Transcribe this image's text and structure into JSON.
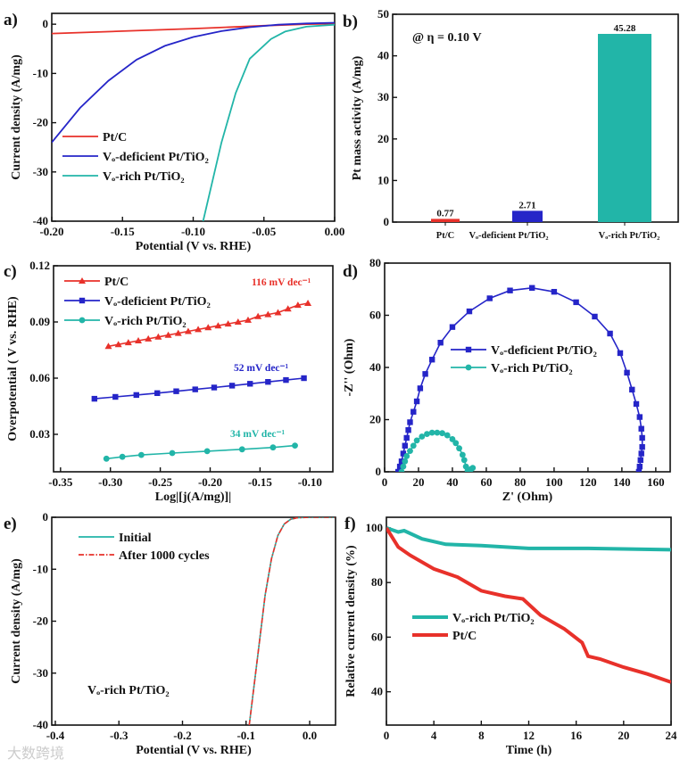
{
  "watermark": "大数跨境",
  "colors": {
    "red": "#e8312a",
    "blue": "#2525c8",
    "teal": "#22b5a8",
    "axis": "#111111"
  },
  "chart_data": [
    {
      "panel": "a)",
      "type": "line",
      "xlabel": "Potential (V vs. RHE)",
      "ylabel": "Current density (A/mg)",
      "xlim": [
        -0.2,
        0.0
      ],
      "ylim": [
        -40,
        2.2
      ],
      "xticks": [
        {
          "v": -0.2,
          "t": "-0.20"
        },
        {
          "v": -0.15,
          "t": "-0.15"
        },
        {
          "v": -0.1,
          "t": "-0.10"
        },
        {
          "v": -0.05,
          "t": "-0.05"
        },
        {
          "v": 0,
          "t": "0.00"
        }
      ],
      "yticks": [
        {
          "v": 0,
          "t": "0"
        },
        {
          "v": -10,
          "t": "-10"
        },
        {
          "v": -20,
          "t": "-20"
        },
        {
          "v": -30,
          "t": "-30"
        },
        {
          "v": -40,
          "t": "-40"
        }
      ],
      "legend": "bottom-left",
      "series": [
        {
          "name": "Pt/C",
          "color": "red",
          "points": [
            [
              -0.2,
              -1.9
            ],
            [
              -0.15,
              -1.4
            ],
            [
              -0.1,
              -0.9
            ],
            [
              -0.05,
              -0.3
            ],
            [
              -0.02,
              0
            ],
            [
              0,
              0.1
            ]
          ]
        },
        {
          "name": "Vₒ-deficient Pt/TiO₂",
          "color": "blue",
          "points": [
            [
              -0.2,
              -24
            ],
            [
              -0.18,
              -17
            ],
            [
              -0.16,
              -11.5
            ],
            [
              -0.14,
              -7.2
            ],
            [
              -0.12,
              -4.4
            ],
            [
              -0.1,
              -2.6
            ],
            [
              -0.08,
              -1.4
            ],
            [
              -0.06,
              -0.6
            ],
            [
              -0.04,
              -0.1
            ],
            [
              -0.02,
              0.15
            ],
            [
              0,
              0.3
            ]
          ]
        },
        {
          "name": "Vₒ-rich Pt/TiO₂",
          "color": "teal",
          "points": [
            [
              -0.093,
              -40
            ],
            [
              -0.08,
              -24
            ],
            [
              -0.07,
              -14
            ],
            [
              -0.06,
              -7
            ],
            [
              -0.045,
              -3
            ],
            [
              -0.035,
              -1.5
            ],
            [
              -0.02,
              -0.5
            ],
            [
              0,
              -0.1
            ]
          ]
        }
      ]
    },
    {
      "panel": "b)",
      "type": "bar",
      "ylabel": "Pt mass activity (A/mg)",
      "ylim": [
        0,
        50
      ],
      "yticks": [
        {
          "v": 0,
          "t": "0"
        },
        {
          "v": 10,
          "t": "10"
        },
        {
          "v": 20,
          "t": "20"
        },
        {
          "v": 30,
          "t": "30"
        },
        {
          "v": 40,
          "t": "40"
        },
        {
          "v": 50,
          "t": "50"
        }
      ],
      "annotation": "@ η = 0.10 V",
      "categories": [
        "Pt/C",
        "Vₒ-deficient Pt/TiO₂",
        "Vₒ-rich Pt/TiO₂"
      ],
      "values": [
        0.77,
        2.71,
        45.28
      ],
      "value_labels": [
        "0.77",
        "2.71",
        "45.28"
      ],
      "bar_colors": [
        "red",
        "blue",
        "teal"
      ]
    },
    {
      "panel": "c)",
      "type": "line",
      "xlabel": "Log|[j(A/mg)]|",
      "ylabel": "Overpotential ( V vs. RHE)",
      "xlim": [
        -0.357,
        -0.077
      ],
      "ylim": [
        0.01,
        0.12
      ],
      "xticks": [
        {
          "v": -0.35,
          "t": "-0.35"
        },
        {
          "v": -0.3,
          "t": "-0.30"
        },
        {
          "v": -0.25,
          "t": "-0.25"
        },
        {
          "v": -0.2,
          "t": "-0.20"
        },
        {
          "v": -0.15,
          "t": "-0.15"
        },
        {
          "v": -0.1,
          "t": "-0.10"
        }
      ],
      "yticks": [
        {
          "v": 0.03,
          "t": "0.03"
        },
        {
          "v": 0.06,
          "t": "0.06"
        },
        {
          "v": 0.09,
          "t": "0.09"
        },
        {
          "v": 0.12,
          "t": "0.12"
        }
      ],
      "legend": "top-left",
      "annotations": [
        {
          "text": "116 mV dec⁻¹",
          "color": "red"
        },
        {
          "text": "52 mV dec⁻¹",
          "color": "blue"
        },
        {
          "text": "34 mV dec⁻¹",
          "color": "teal"
        }
      ],
      "series": [
        {
          "name": "Pt/C",
          "color": "red",
          "marker": "triangle",
          "points": [
            [
              -0.302,
              0.077
            ],
            [
              -0.292,
              0.078
            ],
            [
              -0.282,
              0.079
            ],
            [
              -0.272,
              0.08
            ],
            [
              -0.262,
              0.081
            ],
            [
              -0.252,
              0.082
            ],
            [
              -0.242,
              0.083
            ],
            [
              -0.232,
              0.084
            ],
            [
              -0.222,
              0.085
            ],
            [
              -0.212,
              0.086
            ],
            [
              -0.202,
              0.087
            ],
            [
              -0.192,
              0.088
            ],
            [
              -0.182,
              0.089
            ],
            [
              -0.172,
              0.09
            ],
            [
              -0.162,
              0.091
            ],
            [
              -0.152,
              0.093
            ],
            [
              -0.142,
              0.094
            ],
            [
              -0.132,
              0.095
            ],
            [
              -0.122,
              0.097
            ],
            [
              -0.112,
              0.099
            ],
            [
              -0.102,
              0.1
            ]
          ]
        },
        {
          "name": "Vₒ-deficient Pt/TiO₂",
          "color": "blue",
          "marker": "square",
          "points": [
            [
              -0.316,
              0.049
            ],
            [
              -0.295,
              0.05
            ],
            [
              -0.274,
              0.051
            ],
            [
              -0.253,
              0.052
            ],
            [
              -0.234,
              0.053
            ],
            [
              -0.215,
              0.054
            ],
            [
              -0.196,
              0.055
            ],
            [
              -0.178,
              0.056
            ],
            [
              -0.16,
              0.057
            ],
            [
              -0.142,
              0.058
            ],
            [
              -0.124,
              0.059
            ],
            [
              -0.106,
              0.06
            ]
          ]
        },
        {
          "name": "Vₒ-rich Pt/TiO₂",
          "color": "teal",
          "marker": "circle",
          "points": [
            [
              -0.304,
              0.017
            ],
            [
              -0.288,
              0.018
            ],
            [
              -0.269,
              0.019
            ],
            [
              -0.238,
              0.02
            ],
            [
              -0.203,
              0.021
            ],
            [
              -0.168,
              0.022
            ],
            [
              -0.137,
              0.023
            ],
            [
              -0.115,
              0.024
            ]
          ]
        }
      ]
    },
    {
      "panel": "d)",
      "type": "scatter",
      "xlabel": "Z' (Ohm)",
      "ylabel": "-Z'' (Ohm)",
      "xlim": [
        0,
        168.5
      ],
      "ylim": [
        0,
        80
      ],
      "xticks": [
        {
          "v": 0,
          "t": "0"
        },
        {
          "v": 20,
          "t": "20"
        },
        {
          "v": 40,
          "t": "40"
        },
        {
          "v": 60,
          "t": "60"
        },
        {
          "v": 80,
          "t": "80"
        },
        {
          "v": 100,
          "t": "100"
        },
        {
          "v": 120,
          "t": "120"
        },
        {
          "v": 140,
          "t": "140"
        },
        {
          "v": 160,
          "t": "160"
        }
      ],
      "yticks": [
        {
          "v": 0,
          "t": "0"
        },
        {
          "v": 20,
          "t": "20"
        },
        {
          "v": 40,
          "t": "40"
        },
        {
          "v": 60,
          "t": "60"
        },
        {
          "v": 80,
          "t": "80"
        }
      ],
      "legend": "center",
      "series": [
        {
          "name": "Vₒ-deficient Pt/TiO₂",
          "color": "blue",
          "marker": "square",
          "points": [
            [
              8,
              0
            ],
            [
              9,
              2
            ],
            [
              10,
              4
            ],
            [
              11,
              7
            ],
            [
              12,
              10
            ],
            [
              13,
              13
            ],
            [
              14,
              16
            ],
            [
              15,
              19
            ],
            [
              17,
              23
            ],
            [
              19,
              27
            ],
            [
              21,
              32
            ],
            [
              24,
              37.5
            ],
            [
              28,
              43
            ],
            [
              33,
              49.5
            ],
            [
              40,
              55.5
            ],
            [
              50,
              61.5
            ],
            [
              62,
              66.5
            ],
            [
              74,
              69.5
            ],
            [
              87,
              70.5
            ],
            [
              100,
              69
            ],
            [
              113,
              65
            ],
            [
              124,
              59.5
            ],
            [
              133,
              53
            ],
            [
              139,
              45.5
            ],
            [
              143,
              38
            ],
            [
              146,
              31.5
            ],
            [
              148.5,
              26
            ],
            [
              150.5,
              21
            ],
            [
              151.5,
              16.5
            ],
            [
              152,
              13
            ],
            [
              152,
              9.5
            ],
            [
              151.5,
              7
            ],
            [
              151,
              4.5
            ],
            [
              150.5,
              2
            ],
            [
              150,
              0
            ]
          ]
        },
        {
          "name": "Vₒ-rich Pt/TiO₂",
          "color": "teal",
          "marker": "circle",
          "points": [
            [
              10,
              0
            ],
            [
              11,
              2
            ],
            [
              12,
              4
            ],
            [
              13,
              6
            ],
            [
              15,
              8
            ],
            [
              17,
              10
            ],
            [
              19,
              12
            ],
            [
              22,
              13.5
            ],
            [
              25,
              14.5
            ],
            [
              28,
              15
            ],
            [
              31,
              15
            ],
            [
              34,
              14.8
            ],
            [
              37,
              14
            ],
            [
              40,
              12.5
            ],
            [
              42,
              11
            ],
            [
              44,
              9
            ],
            [
              46,
              6.5
            ],
            [
              47,
              4.5
            ],
            [
              48,
              2
            ],
            [
              49,
              0.5
            ],
            [
              50,
              0.3
            ],
            [
              51,
              1
            ],
            [
              52,
              1.5
            ]
          ]
        }
      ]
    },
    {
      "panel": "e)",
      "type": "line",
      "xlabel": "Potential (V vs. RHE)",
      "ylabel": "Current density (A/mg)",
      "xlim": [
        -0.4056,
        0.0407
      ],
      "ylim": [
        -40,
        0
      ],
      "xticks": [
        {
          "v": -0.4,
          "t": "-0.4"
        },
        {
          "v": -0.3,
          "t": "-0.3"
        },
        {
          "v": -0.2,
          "t": "-0.2"
        },
        {
          "v": -0.1,
          "t": "-0.1"
        },
        {
          "v": 0,
          "t": "0.0"
        }
      ],
      "yticks": [
        {
          "v": 0,
          "t": "0"
        },
        {
          "v": -10,
          "t": "-10"
        },
        {
          "v": -20,
          "t": "-20"
        },
        {
          "v": -30,
          "t": "-30"
        },
        {
          "v": -40,
          "t": "-40"
        }
      ],
      "legend": "top-left",
      "annotation": "Vₒ-rich Pt/TiO₂",
      "series": [
        {
          "name": "Initial",
          "color": "teal",
          "style": "solid",
          "points": [
            [
              -0.095,
              -40
            ],
            [
              -0.08,
              -25
            ],
            [
              -0.07,
              -15
            ],
            [
              -0.06,
              -8
            ],
            [
              -0.05,
              -3.5
            ],
            [
              -0.04,
              -1.3
            ],
            [
              -0.03,
              -0.4
            ],
            [
              -0.02,
              -0.1
            ],
            [
              0,
              0
            ],
            [
              0.04,
              0
            ]
          ]
        },
        {
          "name": "After 1000 cycles",
          "color": "red",
          "style": "dashdot",
          "points": [
            [
              -0.095,
              -40
            ],
            [
              -0.08,
              -25
            ],
            [
              -0.07,
              -15
            ],
            [
              -0.06,
              -8
            ],
            [
              -0.05,
              -3.5
            ],
            [
              -0.04,
              -1.3
            ],
            [
              -0.03,
              -0.4
            ],
            [
              -0.02,
              -0.1
            ],
            [
              0,
              0
            ],
            [
              0.04,
              0
            ]
          ]
        }
      ]
    },
    {
      "panel": "f)",
      "type": "line",
      "xlabel": "Time (h)",
      "ylabel": "Relative current density (%)",
      "xlim": [
        0,
        24
      ],
      "ylim": [
        27.8,
        103.9
      ],
      "xticks": [
        {
          "v": 0,
          "t": "0"
        },
        {
          "v": 4,
          "t": "4"
        },
        {
          "v": 8,
          "t": "8"
        },
        {
          "v": 12,
          "t": "12"
        },
        {
          "v": 16,
          "t": "16"
        },
        {
          "v": 20,
          "t": "20"
        },
        {
          "v": 24,
          "t": "24"
        }
      ],
      "yticks": [
        {
          "v": 40,
          "t": "40"
        },
        {
          "v": 60,
          "t": "60"
        },
        {
          "v": 80,
          "t": "80"
        },
        {
          "v": 100,
          "t": "100"
        }
      ],
      "legend": "bottom-left",
      "series": [
        {
          "name": "Vₒ-rich Pt/TiO₂",
          "color": "teal",
          "points": [
            [
              0,
              100
            ],
            [
              1,
              98.5
            ],
            [
              1.5,
              99
            ],
            [
              3,
              96
            ],
            [
              5,
              94
            ],
            [
              8,
              93.5
            ],
            [
              12,
              92.5
            ],
            [
              17,
              92.5
            ],
            [
              24,
              92
            ]
          ]
        },
        {
          "name": "Pt/C",
          "color": "red",
          "points": [
            [
              0,
              100
            ],
            [
              1,
              93
            ],
            [
              2,
              90
            ],
            [
              4,
              85
            ],
            [
              6,
              82
            ],
            [
              8,
              77
            ],
            [
              10,
              75
            ],
            [
              11.5,
              74
            ],
            [
              13,
              68
            ],
            [
              15,
              63
            ],
            [
              16.5,
              58
            ],
            [
              17,
              53
            ],
            [
              18,
              52
            ],
            [
              20,
              49
            ],
            [
              22,
              46.5
            ],
            [
              24,
              43.5
            ]
          ]
        }
      ]
    }
  ]
}
